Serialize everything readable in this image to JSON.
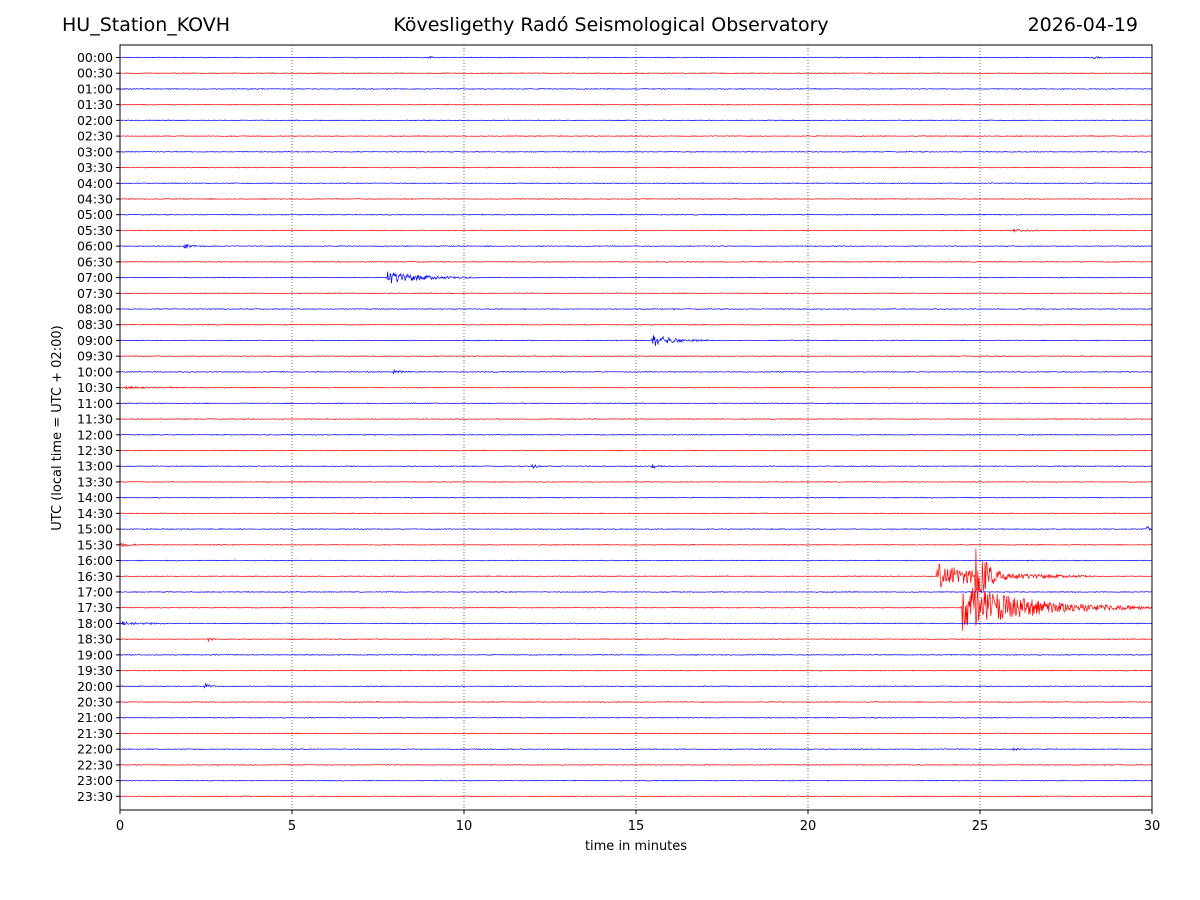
{
  "header": {
    "station": "HU_Station_KOVH",
    "observatory": "Kövesligethy Radó Seismological Observatory",
    "date": "2026-04-19"
  },
  "chart_data": {
    "type": "line",
    "title": "Kövesligethy Radó Seismological Observatory",
    "xlabel": "time in minutes",
    "ylabel": "UTC (local time = UTC + 02:00)",
    "xlim": [
      0,
      30
    ],
    "x_ticks": [
      0,
      5,
      10,
      15,
      20,
      25,
      30
    ],
    "grid": "vertical dotted lines at 5-minute intervals",
    "trace_colors": [
      "#0000ff",
      "#ff0000"
    ],
    "noise_level": 0.06,
    "rows": [
      "00:00",
      "00:30",
      "01:00",
      "01:30",
      "02:00",
      "02:30",
      "03:00",
      "03:30",
      "04:00",
      "04:30",
      "05:00",
      "05:30",
      "06:00",
      "06:30",
      "07:00",
      "07:30",
      "08:00",
      "08:30",
      "09:00",
      "09:30",
      "10:00",
      "10:30",
      "11:00",
      "11:30",
      "12:00",
      "12:30",
      "13:00",
      "13:30",
      "14:00",
      "14:30",
      "15:00",
      "15:30",
      "16:00",
      "16:30",
      "17:00",
      "17:30",
      "18:00",
      "18:30",
      "19:00",
      "19:30",
      "20:00",
      "20:30",
      "21:00",
      "21:30",
      "22:00",
      "22:30",
      "23:00",
      "23:30"
    ],
    "events": [
      {
        "row": "00:00",
        "minute": 9.0,
        "amplitude": 0.2,
        "duration": 0.3
      },
      {
        "row": "00:00",
        "minute": 28.3,
        "amplitude": 0.2,
        "duration": 0.4
      },
      {
        "row": "05:30",
        "minute": 26.0,
        "amplitude": 0.25,
        "duration": 1.2
      },
      {
        "row": "06:00",
        "minute": 1.9,
        "amplitude": 0.35,
        "duration": 0.6
      },
      {
        "row": "07:00",
        "minute": 7.8,
        "amplitude": 1.1,
        "duration": 2.5
      },
      {
        "row": "09:00",
        "minute": 15.5,
        "amplitude": 1.0,
        "duration": 1.6
      },
      {
        "row": "10:00",
        "minute": 8.0,
        "amplitude": 0.3,
        "duration": 0.5
      },
      {
        "row": "10:30",
        "minute": 0.2,
        "amplitude": 0.12,
        "duration": 4.0
      },
      {
        "row": "13:00",
        "minute": 12.0,
        "amplitude": 0.3,
        "duration": 0.6
      },
      {
        "row": "13:00",
        "minute": 15.5,
        "amplitude": 0.3,
        "duration": 0.6
      },
      {
        "row": "15:00",
        "minute": 29.9,
        "amplitude": 0.8,
        "duration": 0.1
      },
      {
        "row": "15:30",
        "minute": 0.0,
        "amplitude": 0.35,
        "duration": 0.8
      },
      {
        "row": "16:30",
        "minute": 23.8,
        "amplitude": 2.0,
        "duration": 4.5
      },
      {
        "row": "16:30",
        "minute": 24.9,
        "amplitude": 4.5,
        "duration": 0.8
      },
      {
        "row": "17:30",
        "minute": 24.5,
        "amplitude": 4.0,
        "duration": 5.5
      },
      {
        "row": "18:00",
        "minute": 0.1,
        "amplitude": 0.25,
        "duration": 2.0
      },
      {
        "row": "18:30",
        "minute": 2.6,
        "amplitude": 0.3,
        "duration": 0.2
      },
      {
        "row": "20:00",
        "minute": 2.5,
        "amplitude": 0.5,
        "duration": 0.3
      },
      {
        "row": "22:00",
        "minute": 26.0,
        "amplitude": 0.2,
        "duration": 0.4
      }
    ]
  }
}
